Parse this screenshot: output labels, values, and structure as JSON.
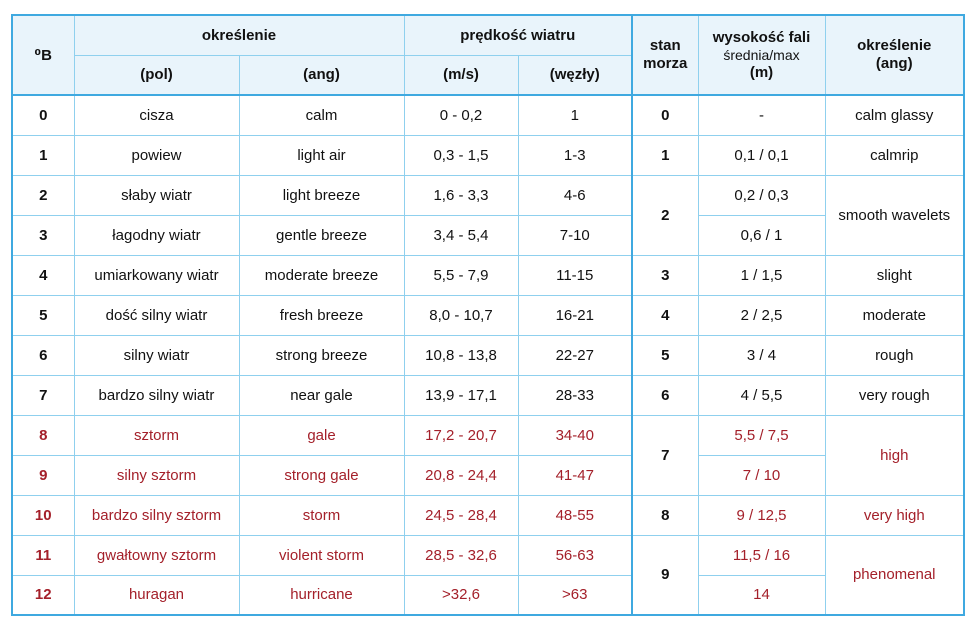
{
  "header": {
    "beaufort": "⁰B",
    "description_group": "określenie",
    "description_pl": "(pol)",
    "description_en": "(ang)",
    "speed_group": "prędkość wiatru",
    "speed_ms": "(m/s)",
    "speed_kn": "(węzły)",
    "sea_state_line1": "stan",
    "sea_state_line2": "morza",
    "wave_line1": "wysokość fali",
    "wave_line2": "średnia/max",
    "wave_line3": "(m)",
    "sea_desc_line1": "określenie",
    "sea_desc_line2": "(ang)"
  },
  "rows": [
    {
      "b": "0",
      "pl": "cisza",
      "en": "calm",
      "ms": "0 - 0,2",
      "kn": "1"
    },
    {
      "b": "1",
      "pl": "powiew",
      "en": "light air",
      "ms": "0,3 - 1,5",
      "kn": "1-3"
    },
    {
      "b": "2",
      "pl": "słaby wiatr",
      "en": "light breeze",
      "ms": "1,6 - 3,3",
      "kn": "4-6"
    },
    {
      "b": "3",
      "pl": "łagodny wiatr",
      "en": "gentle breeze",
      "ms": "3,4 - 5,4",
      "kn": "7-10"
    },
    {
      "b": "4",
      "pl": "umiarkowany wiatr",
      "en": "moderate breeze",
      "ms": "5,5 - 7,9",
      "kn": "11-15"
    },
    {
      "b": "5",
      "pl": "dość silny wiatr",
      "en": "fresh breeze",
      "ms": "8,0 - 10,7",
      "kn": "16-21"
    },
    {
      "b": "6",
      "pl": "silny wiatr",
      "en": "strong breeze",
      "ms": "10,8 - 13,8",
      "kn": "22-27"
    },
    {
      "b": "7",
      "pl": "bardzo silny wiatr",
      "en": "near gale",
      "ms": "13,9 - 17,1",
      "kn": "28-33"
    },
    {
      "b": "8",
      "pl": "sztorm",
      "en": "gale",
      "ms": "17,2 - 20,7",
      "kn": "34-40"
    },
    {
      "b": "9",
      "pl": "silny sztorm",
      "en": "strong gale",
      "ms": "20,8 - 24,4",
      "kn": "41-47"
    },
    {
      "b": "10",
      "pl": "bardzo silny sztorm",
      "en": "storm",
      "ms": "24,5 - 28,4",
      "kn": "48-55"
    },
    {
      "b": "11",
      "pl": "gwałtowny sztorm",
      "en": "violent storm",
      "ms": "28,5 - 32,6",
      "kn": "56-63"
    },
    {
      "b": "12",
      "pl": "huragan",
      "en": "hurricane",
      "ms": ">32,6",
      "kn": ">63"
    }
  ],
  "sea": {
    "s0": "0",
    "w0": "-",
    "d0": "calm glassy",
    "s1": "1",
    "w1": "0,1 / 0,1",
    "d1": "calmrip",
    "s2": "2",
    "w2a": "0,2 / 0,3",
    "w2b": "0,6 / 1",
    "d2": "smooth wavelets",
    "s3": "3",
    "w3": "1 / 1,5",
    "d3": "slight",
    "s4": "4",
    "w4": "2 / 2,5",
    "d4": "moderate",
    "s5": "5",
    "w5": "3 / 4",
    "d5": "rough",
    "s6": "6",
    "w6": "4 / 5,5",
    "d6": "very rough",
    "s7": "7",
    "w7a": "5,5 / 7,5",
    "w7b": "7 / 10",
    "d7": "high",
    "s8": "8",
    "w8": "9 / 12,5",
    "d8": "very high",
    "s9": "9",
    "w9a": "11,5 / 16",
    "w9b": "14",
    "d9": "phenomenal"
  },
  "colors": {
    "border": "#8fd0ee",
    "border_strong": "#3fa9e0",
    "header_bg": "#e9f4fb",
    "storm_text": "#a4202a",
    "text": "#111111"
  }
}
